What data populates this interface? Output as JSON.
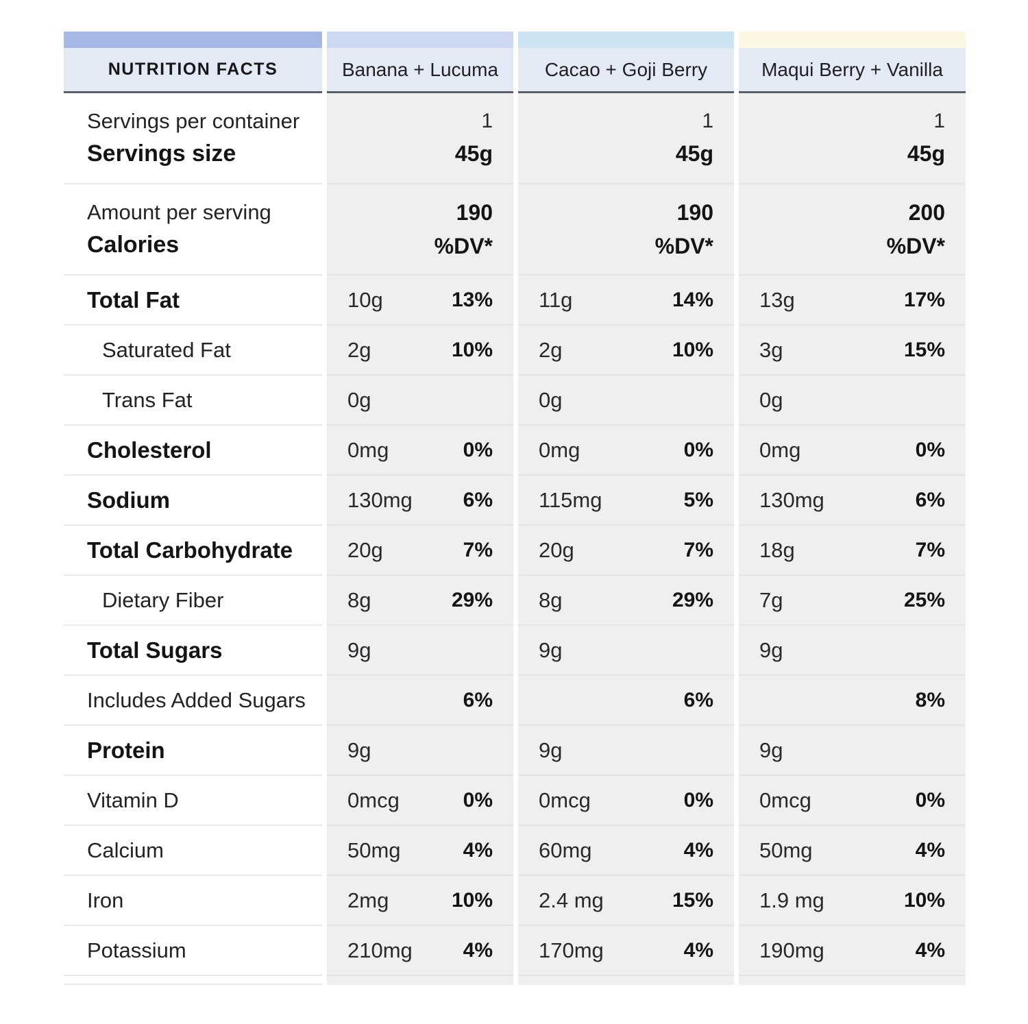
{
  "table": {
    "header": {
      "label": "NUTRITION FACTS",
      "products": [
        "Banana + Lucuma",
        "Cacao + Goji Berry",
        "Maqui Berry + Vanilla"
      ]
    },
    "accent_colors": {
      "label_bar": "#a6b7e5",
      "product_bars": [
        "#ccd8f0",
        "#cde3f2",
        "#fdf6e2"
      ],
      "header_bg": "#e4e9f6",
      "header_border": "#5a5e66",
      "value_cell_bg": "#f0efef"
    },
    "servings_row": {
      "label_top": "Servings per container",
      "label_bottom": "Servings size",
      "values": [
        {
          "top": "1",
          "bottom": "45g"
        },
        {
          "top": "1",
          "bottom": "45g"
        },
        {
          "top": "1",
          "bottom": "45g"
        }
      ]
    },
    "calories_row": {
      "label_top": "Amount per serving",
      "label_bottom": "Calories",
      "values": [
        {
          "top": "190",
          "bottom": "%DV*"
        },
        {
          "top": "190",
          "bottom": "%DV*"
        },
        {
          "top": "200",
          "bottom": "%DV*"
        }
      ]
    },
    "nutrient_rows": [
      {
        "label": "Total Fat",
        "style": "bold",
        "values": [
          [
            "10g",
            "13%"
          ],
          [
            "11g",
            "14%"
          ],
          [
            "13g",
            "17%"
          ]
        ]
      },
      {
        "label": "Saturated Fat",
        "style": "indent",
        "values": [
          [
            "2g",
            "10%"
          ],
          [
            "2g",
            "10%"
          ],
          [
            "3g",
            "15%"
          ]
        ]
      },
      {
        "label": "Trans Fat",
        "style": "indent",
        "values": [
          [
            "0g",
            ""
          ],
          [
            "0g",
            ""
          ],
          [
            "0g",
            ""
          ]
        ]
      },
      {
        "label": "Cholesterol",
        "style": "bold",
        "values": [
          [
            "0mg",
            "0%"
          ],
          [
            "0mg",
            "0%"
          ],
          [
            "0mg",
            "0%"
          ]
        ]
      },
      {
        "label": "Sodium",
        "style": "bold",
        "values": [
          [
            "130mg",
            "6%"
          ],
          [
            "115mg",
            "5%"
          ],
          [
            "130mg",
            "6%"
          ]
        ]
      },
      {
        "label": "Total Carbohydrate",
        "style": "bold",
        "values": [
          [
            "20g",
            "7%"
          ],
          [
            "20g",
            "7%"
          ],
          [
            "18g",
            "7%"
          ]
        ]
      },
      {
        "label": "Dietary Fiber",
        "style": "indent",
        "values": [
          [
            "8g",
            "29%"
          ],
          [
            "8g",
            "29%"
          ],
          [
            "7g",
            "25%"
          ]
        ]
      },
      {
        "label": "Total Sugars",
        "style": "bold",
        "values": [
          [
            "9g",
            ""
          ],
          [
            "9g",
            ""
          ],
          [
            "9g",
            ""
          ]
        ]
      },
      {
        "label": "Includes Added Sugars",
        "style": "plain",
        "values": [
          [
            "",
            "6%"
          ],
          [
            "",
            "6%"
          ],
          [
            "",
            "8%"
          ]
        ]
      },
      {
        "label": "Protein",
        "style": "bold",
        "values": [
          [
            "9g",
            ""
          ],
          [
            "9g",
            ""
          ],
          [
            "9g",
            ""
          ]
        ]
      },
      {
        "label": "Vitamin D",
        "style": "plain",
        "values": [
          [
            "0mcg",
            "0%"
          ],
          [
            "0mcg",
            "0%"
          ],
          [
            "0mcg",
            "0%"
          ]
        ]
      },
      {
        "label": "Calcium",
        "style": "plain",
        "values": [
          [
            "50mg",
            "4%"
          ],
          [
            "60mg",
            "4%"
          ],
          [
            "50mg",
            "4%"
          ]
        ]
      },
      {
        "label": "Iron",
        "style": "plain",
        "values": [
          [
            "2mg",
            "10%"
          ],
          [
            "2.4 mg",
            "15%"
          ],
          [
            "1.9 mg",
            "10%"
          ]
        ]
      },
      {
        "label": "Potassium",
        "style": "plain",
        "values": [
          [
            "210mg",
            "4%"
          ],
          [
            "170mg",
            "4%"
          ],
          [
            "190mg",
            "4%"
          ]
        ]
      }
    ]
  }
}
